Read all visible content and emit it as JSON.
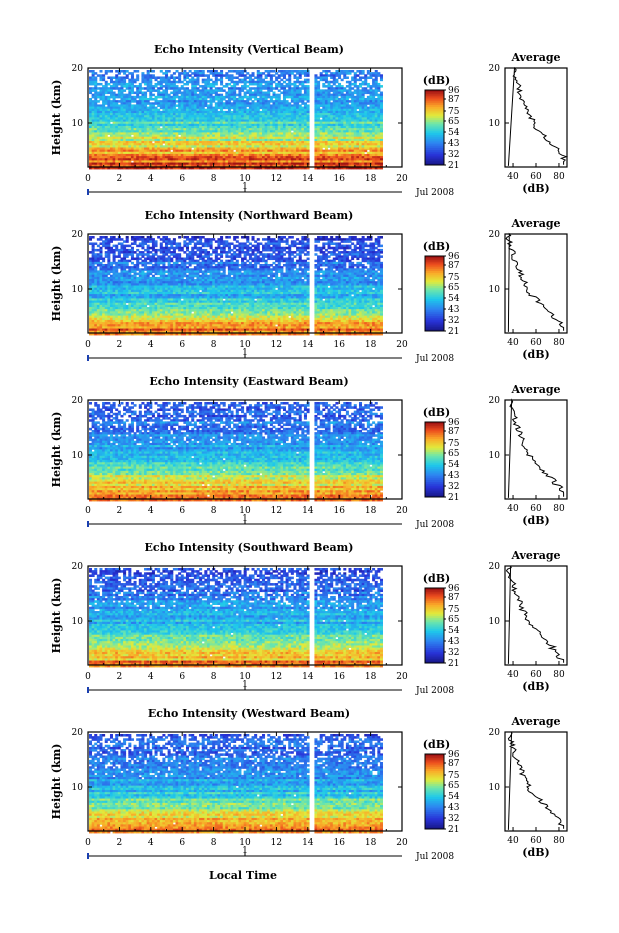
{
  "x_axis_label": "Local Time",
  "panels": [
    {
      "title": "Echo Intensity (Vertical Beam)",
      "offset": 0
    },
    {
      "title": "Echo Intensity (Northward Beam)",
      "offset": 8
    },
    {
      "title": "Echo Intensity (Eastward Beam)",
      "offset": 5
    },
    {
      "title": "Echo Intensity (Southward Beam)",
      "offset": 7
    },
    {
      "title": "Echo Intensity (Westward Beam)",
      "offset": 6
    }
  ],
  "chart_data": {
    "type": "heatmap",
    "ylabel": "Height (km)",
    "y_ticks": [
      10,
      20
    ],
    "ylim": [
      2,
      20
    ],
    "x_ticks": [
      0,
      2,
      4,
      6,
      8,
      10,
      12,
      14,
      16,
      18,
      20
    ],
    "xlim": [
      0,
      20
    ],
    "date_label": "Jul 2008",
    "day_label": "1",
    "data_gap_hours": [
      14.0,
      14.3
    ],
    "data_end_hour": 18.7,
    "colorbar": {
      "label": "(dB)",
      "ticks": [
        96,
        87,
        75,
        65,
        54,
        43,
        32,
        21
      ],
      "range": [
        21,
        96
      ]
    },
    "average_profile": {
      "title": "Average",
      "xlabel": "(dB)",
      "x_ticks": [
        40,
        60,
        80
      ],
      "y_ticks": [
        10,
        20
      ],
      "xlim": [
        33,
        87
      ],
      "ylim": [
        2,
        20
      ],
      "heights": [
        2.5,
        3,
        3.5,
        4,
        4.5,
        5,
        5.5,
        6,
        6.5,
        7,
        8,
        9,
        10,
        11,
        12,
        13,
        14,
        15,
        16,
        17,
        18,
        19,
        20
      ],
      "values": [
        84,
        85,
        84,
        86,
        82,
        78,
        79,
        74,
        72,
        70,
        66,
        60,
        57,
        56,
        52,
        51,
        49,
        47,
        45,
        44,
        42,
        41,
        40
      ]
    }
  }
}
